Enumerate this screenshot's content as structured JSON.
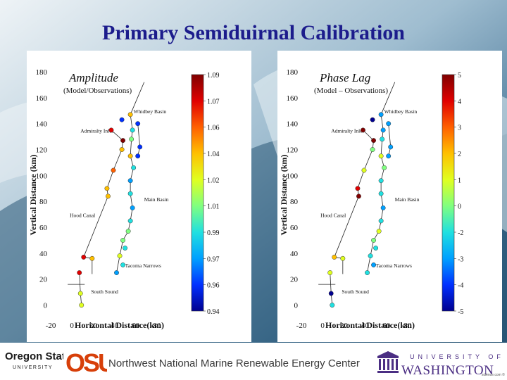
{
  "slide": {
    "title": "Primary Semiduirnal Calibration",
    "footer_text": "Northwest National Marine Renewable Energy Center",
    "left_logo": {
      "name": "Oregon State",
      "sub": "UNIVERSITY",
      "mark": "OSU"
    },
    "right_logo": {
      "top": "UNIVERSITY OF",
      "name": "WASHINGTON"
    },
    "credit": "science.com ©"
  },
  "colors": {
    "title": "#1c1c8c",
    "colormap": [
      "#00008f",
      "#0030ff",
      "#00a0ff",
      "#20e0e0",
      "#80ff80",
      "#e0ff20",
      "#ffc000",
      "#ff6000",
      "#e00000",
      "#800000"
    ]
  },
  "chart_data": [
    {
      "type": "scatter",
      "panel": "amplitude",
      "title": "Amplitude",
      "subtitle": "(Model/Observations)",
      "xlabel": "Horizontal Distance(km)",
      "ylabel": "Vertical Distance (km)",
      "xlim": [
        -20,
        100
      ],
      "ylim": [
        -10,
        180
      ],
      "xticks": [
        -20,
        0,
        20,
        40,
        60,
        80
      ],
      "yticks": [
        0,
        20,
        40,
        60,
        80,
        100,
        120,
        140,
        160,
        180
      ],
      "colorbar": {
        "min": 0.94,
        "max": 1.09,
        "ticks": [
          "1.09",
          "1.07",
          "1.06",
          "1.04",
          "1.02",
          "1.01",
          "0.99",
          "0.97",
          "0.96",
          "0.94"
        ]
      },
      "annotations": [
        {
          "text": "Whidbey Basin",
          "x": 58,
          "y": 148
        },
        {
          "text": "Admiralty Inlet",
          "x": 8,
          "y": 133
        },
        {
          "text": "Main Basin",
          "x": 68,
          "y": 80
        },
        {
          "text": "Hood Canal",
          "x": -2,
          "y": 68
        },
        {
          "text": "Tacoma Narrows",
          "x": 50,
          "y": 29
        },
        {
          "text": "South Sound",
          "x": 18,
          "y": 9
        }
      ],
      "stations": [
        {
          "x": 55,
          "y": 147,
          "v": 1.03
        },
        {
          "x": 47,
          "y": 143,
          "v": 0.955
        },
        {
          "x": 57,
          "y": 135,
          "v": 0.99
        },
        {
          "x": 62,
          "y": 140,
          "v": 0.965
        },
        {
          "x": 37,
          "y": 135,
          "v": 1.075
        },
        {
          "x": 48,
          "y": 127,
          "v": 1.08
        },
        {
          "x": 56,
          "y": 128,
          "v": 1.0
        },
        {
          "x": 64,
          "y": 122,
          "v": 0.955
        },
        {
          "x": 47,
          "y": 120,
          "v": 1.045
        },
        {
          "x": 55,
          "y": 115,
          "v": 1.035
        },
        {
          "x": 62,
          "y": 115,
          "v": 0.965
        },
        {
          "x": 58,
          "y": 106,
          "v": 0.99
        },
        {
          "x": 39,
          "y": 104,
          "v": 1.05
        },
        {
          "x": 55,
          "y": 96,
          "v": 0.98
        },
        {
          "x": 33,
          "y": 90,
          "v": 1.035
        },
        {
          "x": 55,
          "y": 86,
          "v": 0.985
        },
        {
          "x": 34,
          "y": 84,
          "v": 1.035
        },
        {
          "x": 57,
          "y": 75,
          "v": 0.975
        },
        {
          "x": 55,
          "y": 65,
          "v": 0.99
        },
        {
          "x": 53,
          "y": 57,
          "v": 1.0
        },
        {
          "x": 48,
          "y": 50,
          "v": 1.015
        },
        {
          "x": 50,
          "y": 44,
          "v": 0.99
        },
        {
          "x": 45,
          "y": 38,
          "v": 1.02
        },
        {
          "x": 48,
          "y": 31,
          "v": 0.985
        },
        {
          "x": 42,
          "y": 25,
          "v": 0.975
        },
        {
          "x": 11,
          "y": 37,
          "v": 1.065
        },
        {
          "x": 19,
          "y": 36,
          "v": 1.04
        },
        {
          "x": 7,
          "y": 25,
          "v": 1.06
        },
        {
          "x": 8,
          "y": 9,
          "v": 1.02
        },
        {
          "x": 9,
          "y": 0,
          "v": 1.02
        }
      ]
    },
    {
      "type": "scatter",
      "panel": "phase-lag",
      "title": "Phase Lag",
      "subtitle": "(Model – Observations)",
      "xlabel": "Horizontal Distance(km)",
      "ylabel": "Vertical Distance (km)",
      "xlim": [
        -20,
        100
      ],
      "ylim": [
        -10,
        180
      ],
      "xticks": [
        -20,
        0,
        20,
        40,
        60,
        80
      ],
      "yticks": [
        0,
        20,
        40,
        60,
        80,
        100,
        120,
        140,
        160,
        180
      ],
      "colorbar": {
        "min": -5,
        "max": 5,
        "ticks": [
          "5",
          "4",
          "3",
          "2",
          "1",
          "0",
          "-2",
          "-3",
          "-4",
          "-5"
        ]
      },
      "annotations": [
        {
          "text": "Whidbey Basin",
          "x": 58,
          "y": 148
        },
        {
          "text": "Admiralty Inlet",
          "x": 8,
          "y": 133
        },
        {
          "text": "Main Basin",
          "x": 68,
          "y": 80
        },
        {
          "text": "Hood Canal",
          "x": -2,
          "y": 68
        },
        {
          "text": "Tacoma Narrows",
          "x": 50,
          "y": 29
        },
        {
          "text": "South Sound",
          "x": 18,
          "y": 9
        }
      ],
      "stations": [
        {
          "x": 55,
          "y": 147,
          "v": -2.8
        },
        {
          "x": 47,
          "y": 143,
          "v": -4.5
        },
        {
          "x": 57,
          "y": 135,
          "v": -2.2
        },
        {
          "x": 62,
          "y": 140,
          "v": -3.0
        },
        {
          "x": 38,
          "y": 135,
          "v": 4.8
        },
        {
          "x": 48,
          "y": 127,
          "v": 4.6
        },
        {
          "x": 56,
          "y": 128,
          "v": -1.5
        },
        {
          "x": 64,
          "y": 122,
          "v": -3.0
        },
        {
          "x": 47,
          "y": 120,
          "v": -0.8
        },
        {
          "x": 55,
          "y": 115,
          "v": 0.3
        },
        {
          "x": 62,
          "y": 115,
          "v": -2.6
        },
        {
          "x": 58,
          "y": 106,
          "v": -1.0
        },
        {
          "x": 39,
          "y": 104,
          "v": 0.8
        },
        {
          "x": 55,
          "y": 96,
          "v": -1.6
        },
        {
          "x": 33,
          "y": 90,
          "v": 3.8
        },
        {
          "x": 55,
          "y": 86,
          "v": -1.8
        },
        {
          "x": 34,
          "y": 84,
          "v": 4.4
        },
        {
          "x": 57,
          "y": 75,
          "v": -2.2
        },
        {
          "x": 55,
          "y": 65,
          "v": -1.2
        },
        {
          "x": 53,
          "y": 57,
          "v": 0.2
        },
        {
          "x": 48,
          "y": 50,
          "v": -0.6
        },
        {
          "x": 50,
          "y": 44,
          "v": -1.4
        },
        {
          "x": 45,
          "y": 38,
          "v": -1.8
        },
        {
          "x": 48,
          "y": 31,
          "v": -2.4
        },
        {
          "x": 42,
          "y": 25,
          "v": -1.6
        },
        {
          "x": 11,
          "y": 37,
          "v": 1.2
        },
        {
          "x": 19,
          "y": 36,
          "v": 0.6
        },
        {
          "x": 7,
          "y": 25,
          "v": 0.4
        },
        {
          "x": 8,
          "y": 9,
          "v": -4.6
        },
        {
          "x": 9,
          "y": 0,
          "v": -1.6
        }
      ]
    }
  ]
}
